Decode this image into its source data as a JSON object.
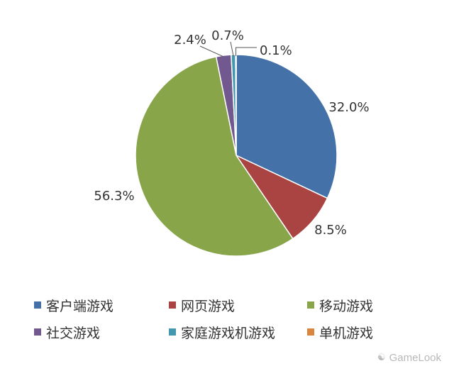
{
  "chart_data": {
    "type": "pie",
    "title": "",
    "slices": [
      {
        "label": "客户端游戏",
        "value": 32.0,
        "value_label": "32.0%",
        "color": "#4472A8"
      },
      {
        "label": "网页游戏",
        "value": 8.5,
        "value_label": "8.5%",
        "color": "#AA4442"
      },
      {
        "label": "移动游戏",
        "value": 56.3,
        "value_label": "56.3%",
        "color": "#88A54A"
      },
      {
        "label": "社交游戏",
        "value": 2.4,
        "value_label": "2.4%",
        "color": "#71588F"
      },
      {
        "label": "家庭游戏机游戏",
        "value": 0.7,
        "value_label": "0.7%",
        "color": "#4198AF"
      },
      {
        "label": "单机游戏",
        "value": 0.1,
        "value_label": "0.1%",
        "color": "#DB843D"
      }
    ],
    "start_angle": "12 o'clock",
    "direction": "clockwise",
    "legend_position": "bottom"
  },
  "watermark": {
    "icon": "wechat-icon",
    "text": "GameLook"
  }
}
